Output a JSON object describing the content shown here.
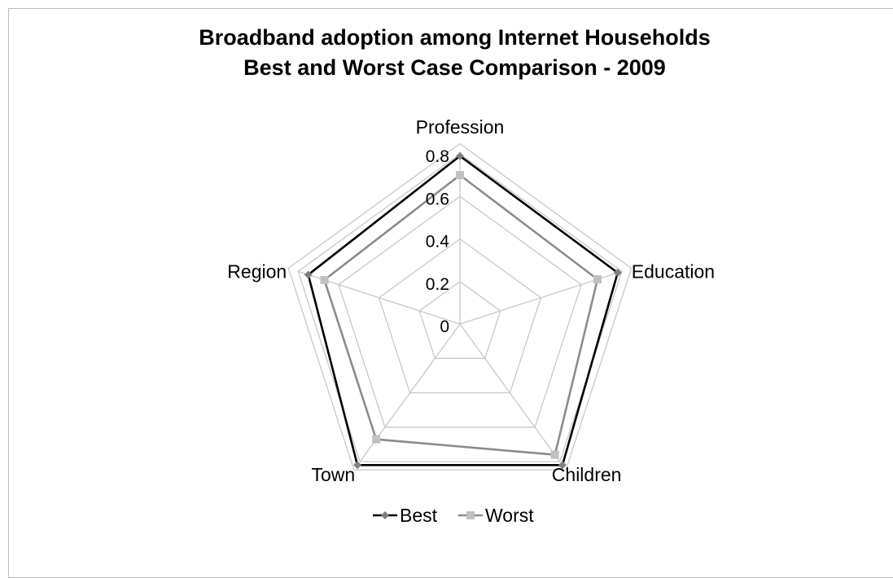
{
  "chart_data": {
    "type": "radar",
    "title": "Broadband adoption among Internet Households",
    "subtitle": "Best and Worst Case Comparison - 2009",
    "categories": [
      "Profession",
      "Education",
      "Children",
      "Town",
      "Region"
    ],
    "rlim": [
      0,
      0.8
    ],
    "ticks": [
      "0",
      "0.2",
      "0.4",
      "0.6",
      "0.8"
    ],
    "grid": true,
    "legend_position": "bottom",
    "series": [
      {
        "name": "Best",
        "values": [
          0.79,
          0.78,
          0.82,
          0.82,
          0.75
        ],
        "color": "#000000",
        "marker_color": "#7f7f7f"
      },
      {
        "name": "Worst",
        "values": [
          0.7,
          0.68,
          0.76,
          0.67,
          0.67
        ],
        "color": "#8c8c8c",
        "marker_color": "#c0c0c0"
      }
    ]
  }
}
